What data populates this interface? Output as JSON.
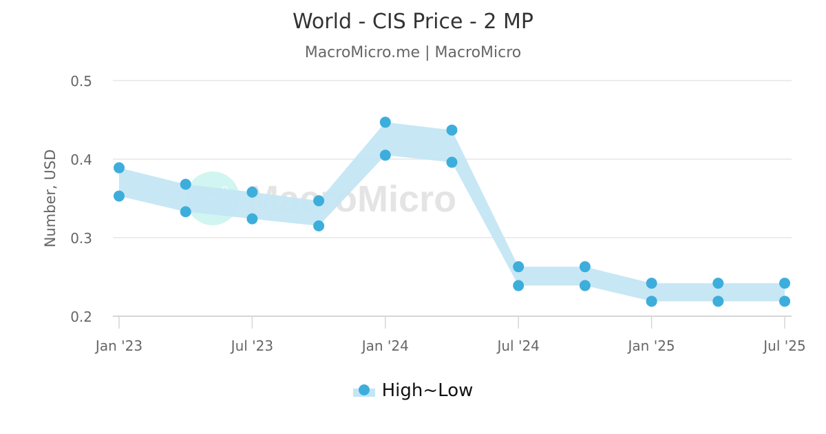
{
  "header": {
    "title": "World - CIS Price - 2 MP",
    "subtitle": "MacroMicro.me | MacroMicro"
  },
  "watermark": {
    "text": "MacroMicro"
  },
  "legend": {
    "items": [
      {
        "label": "High~Low",
        "color": "#3daedb",
        "fill": "#c4e6f4"
      }
    ]
  },
  "colors": {
    "point": "#3daedb",
    "band": "#c4e6f4",
    "grid": "#e6e6e6",
    "axis_text": "#666666"
  },
  "chart_data": {
    "type": "area",
    "subtype": "arearange",
    "title": "World - CIS Price - 2 MP",
    "subtitle": "MacroMicro.me | MacroMicro",
    "xlabel": "",
    "ylabel": "Number, USD",
    "ylim": [
      0.2,
      0.5
    ],
    "yticks": [
      "0.2",
      "0.3",
      "0.4",
      "0.5"
    ],
    "xticks": [
      "Jan '23",
      "Jul '23",
      "Jan '24",
      "Jul '24",
      "Jan '25",
      "Jul '25"
    ],
    "grid": true,
    "legend_position": "bottom",
    "x": [
      "2023-01",
      "2023-04",
      "2023-07",
      "2023-10",
      "2024-01",
      "2024-04",
      "2024-07",
      "2024-10",
      "2025-01",
      "2025-04",
      "2025-07"
    ],
    "series": [
      {
        "name": "High",
        "values": [
          0.389,
          0.368,
          0.358,
          0.347,
          0.447,
          0.437,
          0.263,
          0.263,
          0.242,
          0.242,
          0.242
        ]
      },
      {
        "name": "Low",
        "values": [
          0.353,
          0.333,
          0.324,
          0.315,
          0.405,
          0.396,
          0.239,
          0.239,
          0.219,
          0.219,
          0.219
        ]
      }
    ],
    "legend": [
      "High~Low"
    ]
  }
}
